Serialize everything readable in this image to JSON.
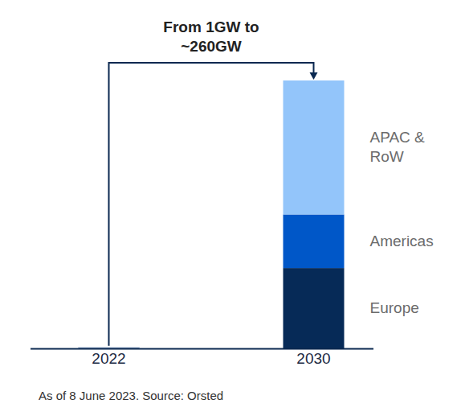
{
  "chart_data": {
    "type": "bar",
    "stacked": true,
    "tick_labels": "x",
    "annotation": [
      "From 1GW to",
      "~260GW"
    ],
    "source": "As of 8 June 2023. Source: Orsted",
    "categories": [
      "2022",
      "2030"
    ],
    "ylim": [
      0,
      260
    ],
    "series": [
      {
        "color": "#0a2850",
        "values": [
          1,
          null
        ]
      },
      {
        "name": "Europe",
        "color": "#062a57",
        "values": [
          null,
          78
        ]
      },
      {
        "name": "Americas",
        "color": "#0057c8",
        "values": [
          null,
          52
        ]
      },
      {
        "name": "APAC & RoW",
        "color": "#93c5fa",
        "values": [
          null,
          130
        ]
      }
    ]
  }
}
